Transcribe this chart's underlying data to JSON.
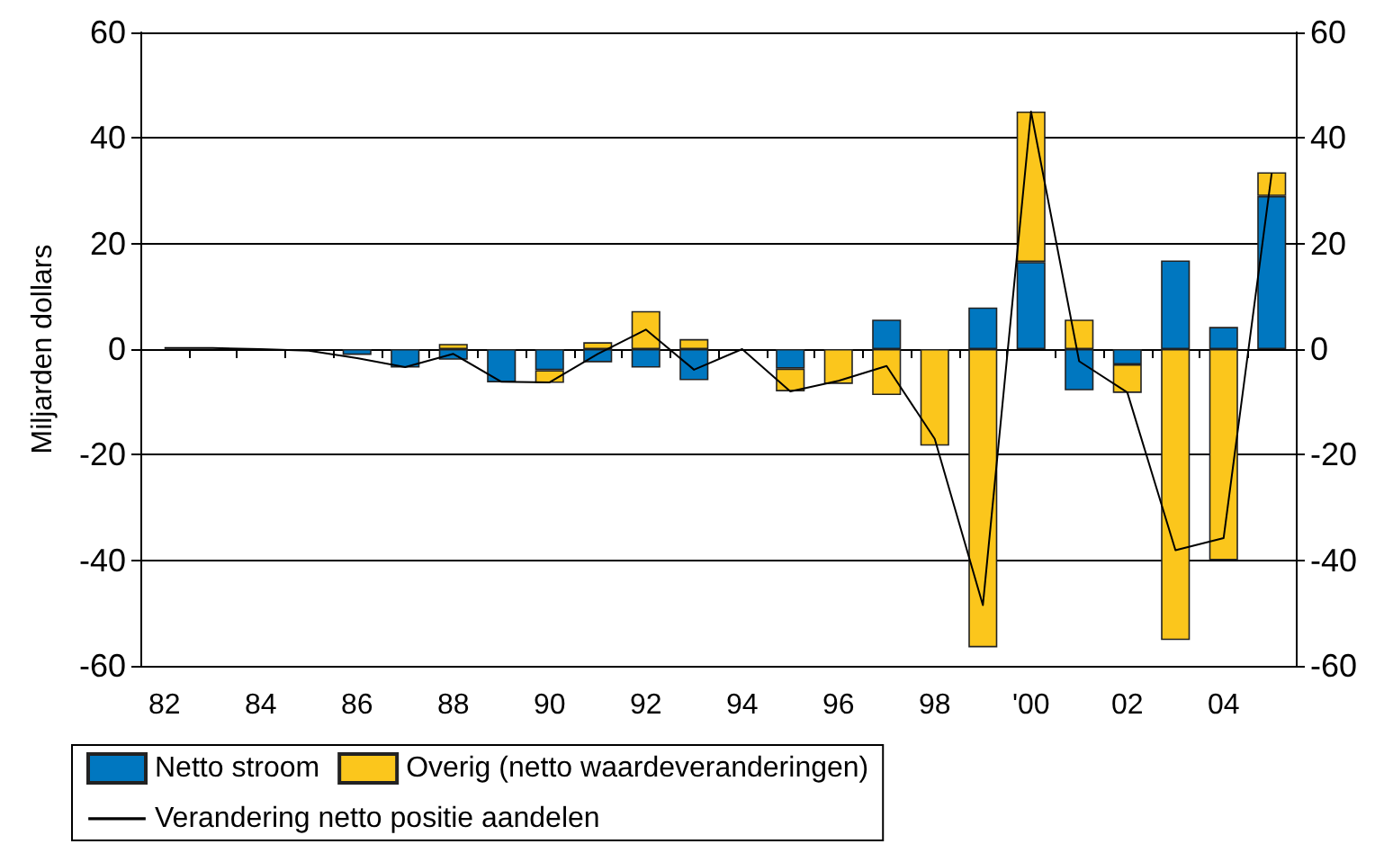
{
  "chart_data": {
    "type": "bar",
    "stacked": true,
    "ylabel": "Miljarden dollars",
    "categories": [
      "82",
      null,
      "84",
      null,
      "86",
      null,
      "88",
      null,
      "90",
      null,
      "92",
      null,
      "94",
      null,
      "96",
      null,
      "98",
      null,
      "'00",
      null,
      "02",
      null,
      "04",
      null
    ],
    "series": [
      {
        "name": "Netto stroom",
        "color": "#0077c0",
        "values": [
          0,
          0,
          0,
          null,
          -1.1,
          -3.5,
          -2,
          -6.3,
          -4,
          -2.5,
          -3.5,
          -5.9,
          0,
          -3.7,
          null,
          5.6,
          0,
          7.9,
          16.5,
          -7.8,
          -2.9,
          16.8,
          4.2,
          29
        ]
      },
      {
        "name": "Overig (netto waardeveranderingen)",
        "color": "#fbc61c",
        "values": [
          0,
          0,
          0,
          0,
          null,
          0,
          1,
          null,
          -2.4,
          1.3,
          7.2,
          1.9,
          0,
          -4.3,
          -6.6,
          -8.7,
          -18.3,
          -56.5,
          28.5,
          5.6,
          -5.4,
          -55.1,
          -40,
          4.5
        ]
      },
      {
        "name": "Verandering netto positie aandelen",
        "type": "line",
        "color": "#000000",
        "marker": "none",
        "values": [
          0.2,
          0.2,
          0,
          -0.3,
          -1.7,
          -3.4,
          -0.9,
          -6.2,
          -6.3,
          -0.9,
          3.7,
          -3.9,
          0,
          -8,
          -6,
          -3.2,
          -17,
          -48.5,
          45,
          -2.3,
          -8.2,
          -38.1,
          -35.8,
          33.4
        ]
      }
    ],
    "ylim": [
      -60,
      60
    ],
    "yticks": [
      -60,
      -40,
      -20,
      0,
      20,
      40,
      60
    ],
    "y2lim": [
      -60,
      60
    ],
    "y2ticks": [
      -60,
      -40,
      -20,
      0,
      20,
      40,
      60
    ],
    "grid": "y",
    "legend": "bottom"
  }
}
